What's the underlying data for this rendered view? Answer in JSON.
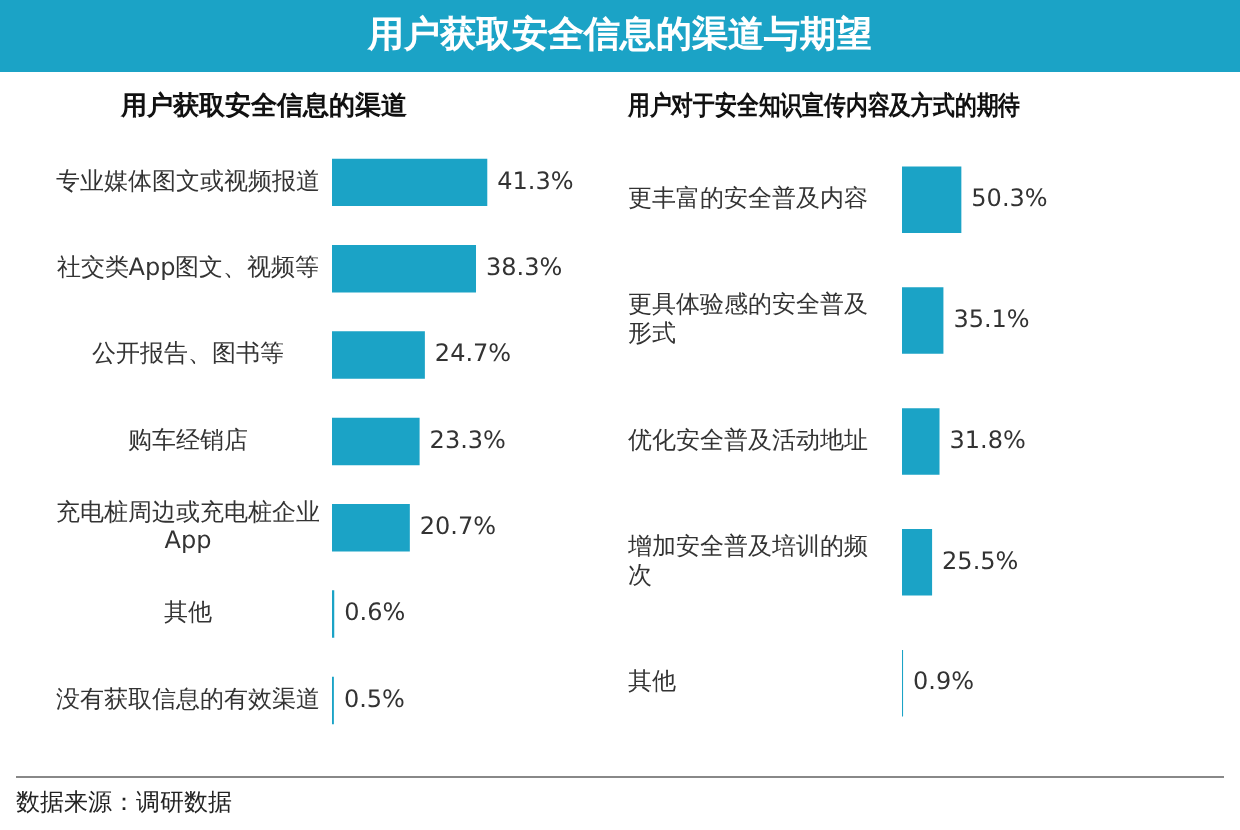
{
  "chart_data": [
    {
      "type": "other",
      "title": "用户获取安全信息的渠道与期望",
      "color": "#1ba3c6",
      "annotations": [
        "数据来源：调研数据"
      ]
    },
    {
      "type": "bar",
      "orientation": "horizontal",
      "title": "用户获取安全信息的渠道",
      "categories": [
        "专业媒体图文或视频报道",
        "社交类App图文、视频等",
        "公开报告、图书等",
        "购车经销店",
        "充电桩周边或充电桩企业App",
        "其他",
        "没有获取信息的有效渠道"
      ],
      "values": [
        41.3,
        38.3,
        24.7,
        23.3,
        20.7,
        0.6,
        0.5
      ],
      "value_labels": [
        "41.3%",
        "38.3%",
        "24.7%",
        "23.3%",
        "20.7%",
        "0.6%",
        "0.5%"
      ],
      "color": "#1ba3c6",
      "tick_labels": "y",
      "grid": false,
      "legend": false
    },
    {
      "type": "bar",
      "orientation": "horizontal",
      "title": "用户对于安全知识宣传内容及方式的期待",
      "categories": [
        "更丰富的安全普及内容",
        "更具体验感的安全普及形式",
        "优化安全普及活动地址",
        "增加安全普及培训的频次",
        "其他"
      ],
      "values": [
        50.3,
        35.1,
        31.8,
        25.5,
        0.9
      ],
      "value_labels": [
        "50.3%",
        "35.1%",
        "31.8%",
        "25.5%",
        "0.9%"
      ],
      "color": "#1ba3c6",
      "tick_labels": "y",
      "grid": false,
      "legend": false
    }
  ]
}
